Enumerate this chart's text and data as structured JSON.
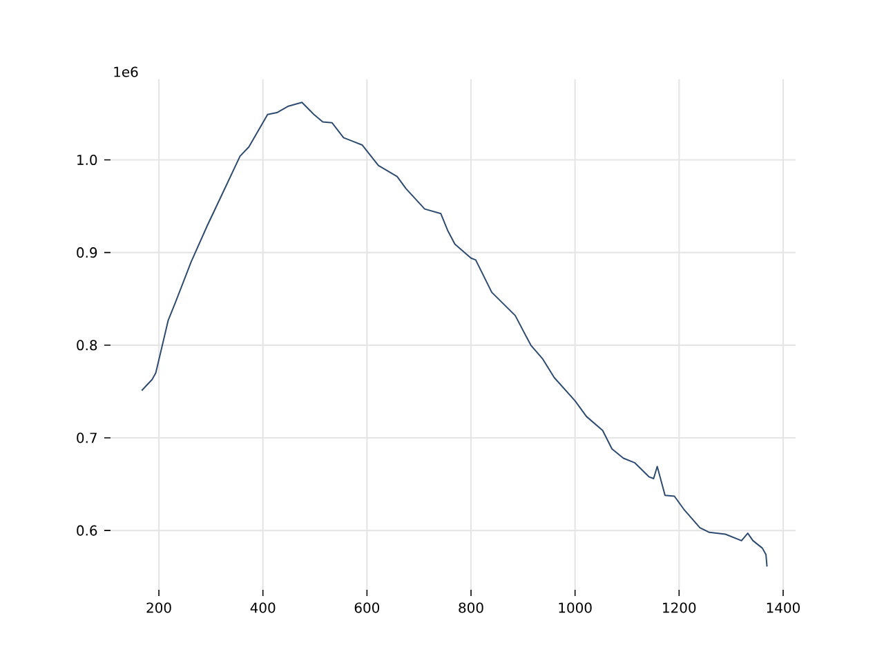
{
  "chart_data": {
    "type": "line",
    "x": [
      167,
      187,
      194,
      218,
      231,
      262,
      293,
      325,
      356,
      373,
      409,
      427,
      449,
      475,
      498,
      515,
      533,
      555,
      591,
      622,
      658,
      675,
      711,
      742,
      755,
      769,
      800,
      809,
      840,
      885,
      915,
      938,
      960,
      1000,
      1022,
      1053,
      1071,
      1093,
      1115,
      1142,
      1151,
      1158,
      1173,
      1191,
      1209,
      1240,
      1258,
      1289,
      1320,
      1332,
      1342,
      1360,
      1367,
      1369
    ],
    "series": [
      {
        "color": "#2e4a6e",
        "values": [
          0.751,
          0.763,
          0.77,
          0.827,
          0.845,
          0.89,
          0.929,
          0.967,
          1.004,
          1.014,
          1.049,
          1.051,
          1.058,
          1.062,
          1.049,
          1.041,
          1.04,
          1.024,
          1.016,
          0.994,
          0.982,
          0.969,
          0.947,
          0.942,
          0.924,
          0.909,
          0.894,
          0.892,
          0.857,
          0.832,
          0.8,
          0.785,
          0.765,
          0.74,
          0.723,
          0.708,
          0.688,
          0.678,
          0.673,
          0.658,
          0.656,
          0.669,
          0.638,
          0.637,
          0.623,
          0.603,
          0.598,
          0.596,
          0.589,
          0.597,
          0.589,
          0.581,
          0.574,
          0.561
        ]
      }
    ],
    "xlim": [
      107,
      1424
    ],
    "ylim": [
      0.536,
      1.087
    ],
    "xticks": [
      200,
      400,
      600,
      800,
      1000,
      1200,
      1400
    ],
    "yticks": [
      0.6,
      0.7,
      0.8,
      0.9,
      {
        "value": 1,
        "label": "1.0"
      }
    ],
    "annotations": [
      "1e6"
    ],
    "grid": true,
    "marker": "none",
    "line_style": "solid"
  }
}
